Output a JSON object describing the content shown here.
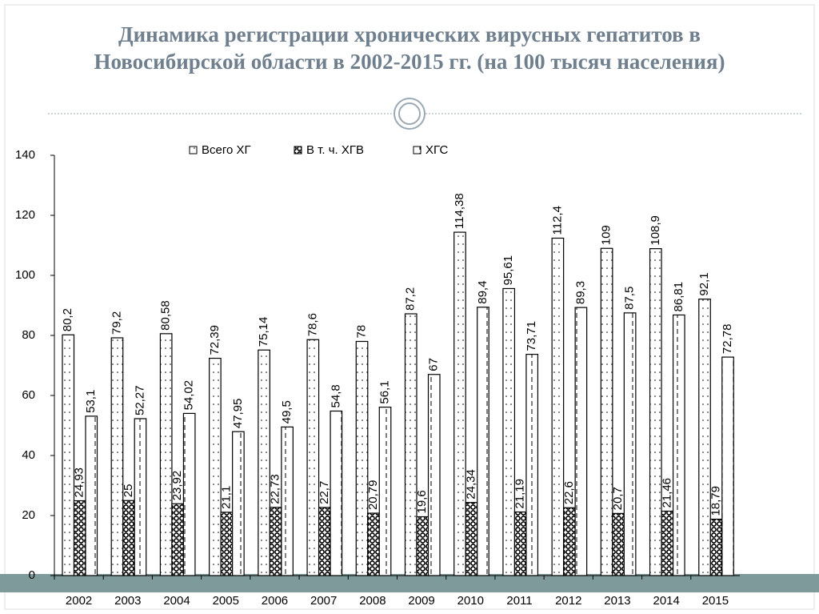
{
  "chart_data": {
    "type": "bar",
    "title": "Динамика регистрации хронических вирусных гепатитов в Новосибирской области в 2002-2015 гг. (на 100 тысяч населения)",
    "categories": [
      "2002",
      "2003",
      "2004",
      "2005",
      "2006",
      "2007",
      "2008",
      "2009",
      "2010",
      "2011",
      "2012",
      "2013",
      "2014",
      "2015"
    ],
    "series": [
      {
        "name": "Всего ХГ",
        "color": "#000000",
        "values": [
          80.2,
          79.2,
          80.58,
          72.39,
          75.14,
          78.6,
          78,
          87.2,
          114.38,
          95.61,
          112.4,
          109,
          108.9,
          92.1
        ],
        "value_labels": [
          "80,2",
          "79,2",
          "80,58",
          "72,39",
          "75,14",
          "78,6",
          "78",
          "87,2",
          "114,38",
          "95,61",
          "112,4",
          "109",
          "108,9",
          "92,1"
        ]
      },
      {
        "name": "В т. ч. ХГВ",
        "color": "#000000",
        "values": [
          24.93,
          25,
          23.92,
          21.1,
          22.73,
          22.7,
          20.79,
          19.6,
          24.34,
          21.19,
          22.6,
          20.7,
          21.46,
          18.79
        ],
        "value_labels": [
          "24,93",
          "25",
          "23,92",
          "21,1",
          "22,73",
          "22,7",
          "20,79",
          "19,6",
          "24,34",
          "21,19",
          "22,6",
          "20,7",
          "21,46",
          "18,79"
        ]
      },
      {
        "name": "ХГС",
        "color": "#000000",
        "values": [
          53.1,
          52.27,
          54.02,
          47.95,
          49.5,
          54.8,
          56.1,
          67,
          89.4,
          73.71,
          89.3,
          87.5,
          86.81,
          72.78
        ],
        "value_labels": [
          "53,1",
          "52,27",
          "54,02",
          "47,95",
          "49,5",
          "54,8",
          "56,1",
          "67",
          "89,4",
          "73,71",
          "89,3",
          "87,5",
          "86,81",
          "72,78"
        ]
      }
    ],
    "ylim": [
      0,
      140
    ],
    "yticks": [
      0,
      20,
      40,
      60,
      80,
      100,
      120,
      140
    ],
    "legend": "top"
  }
}
